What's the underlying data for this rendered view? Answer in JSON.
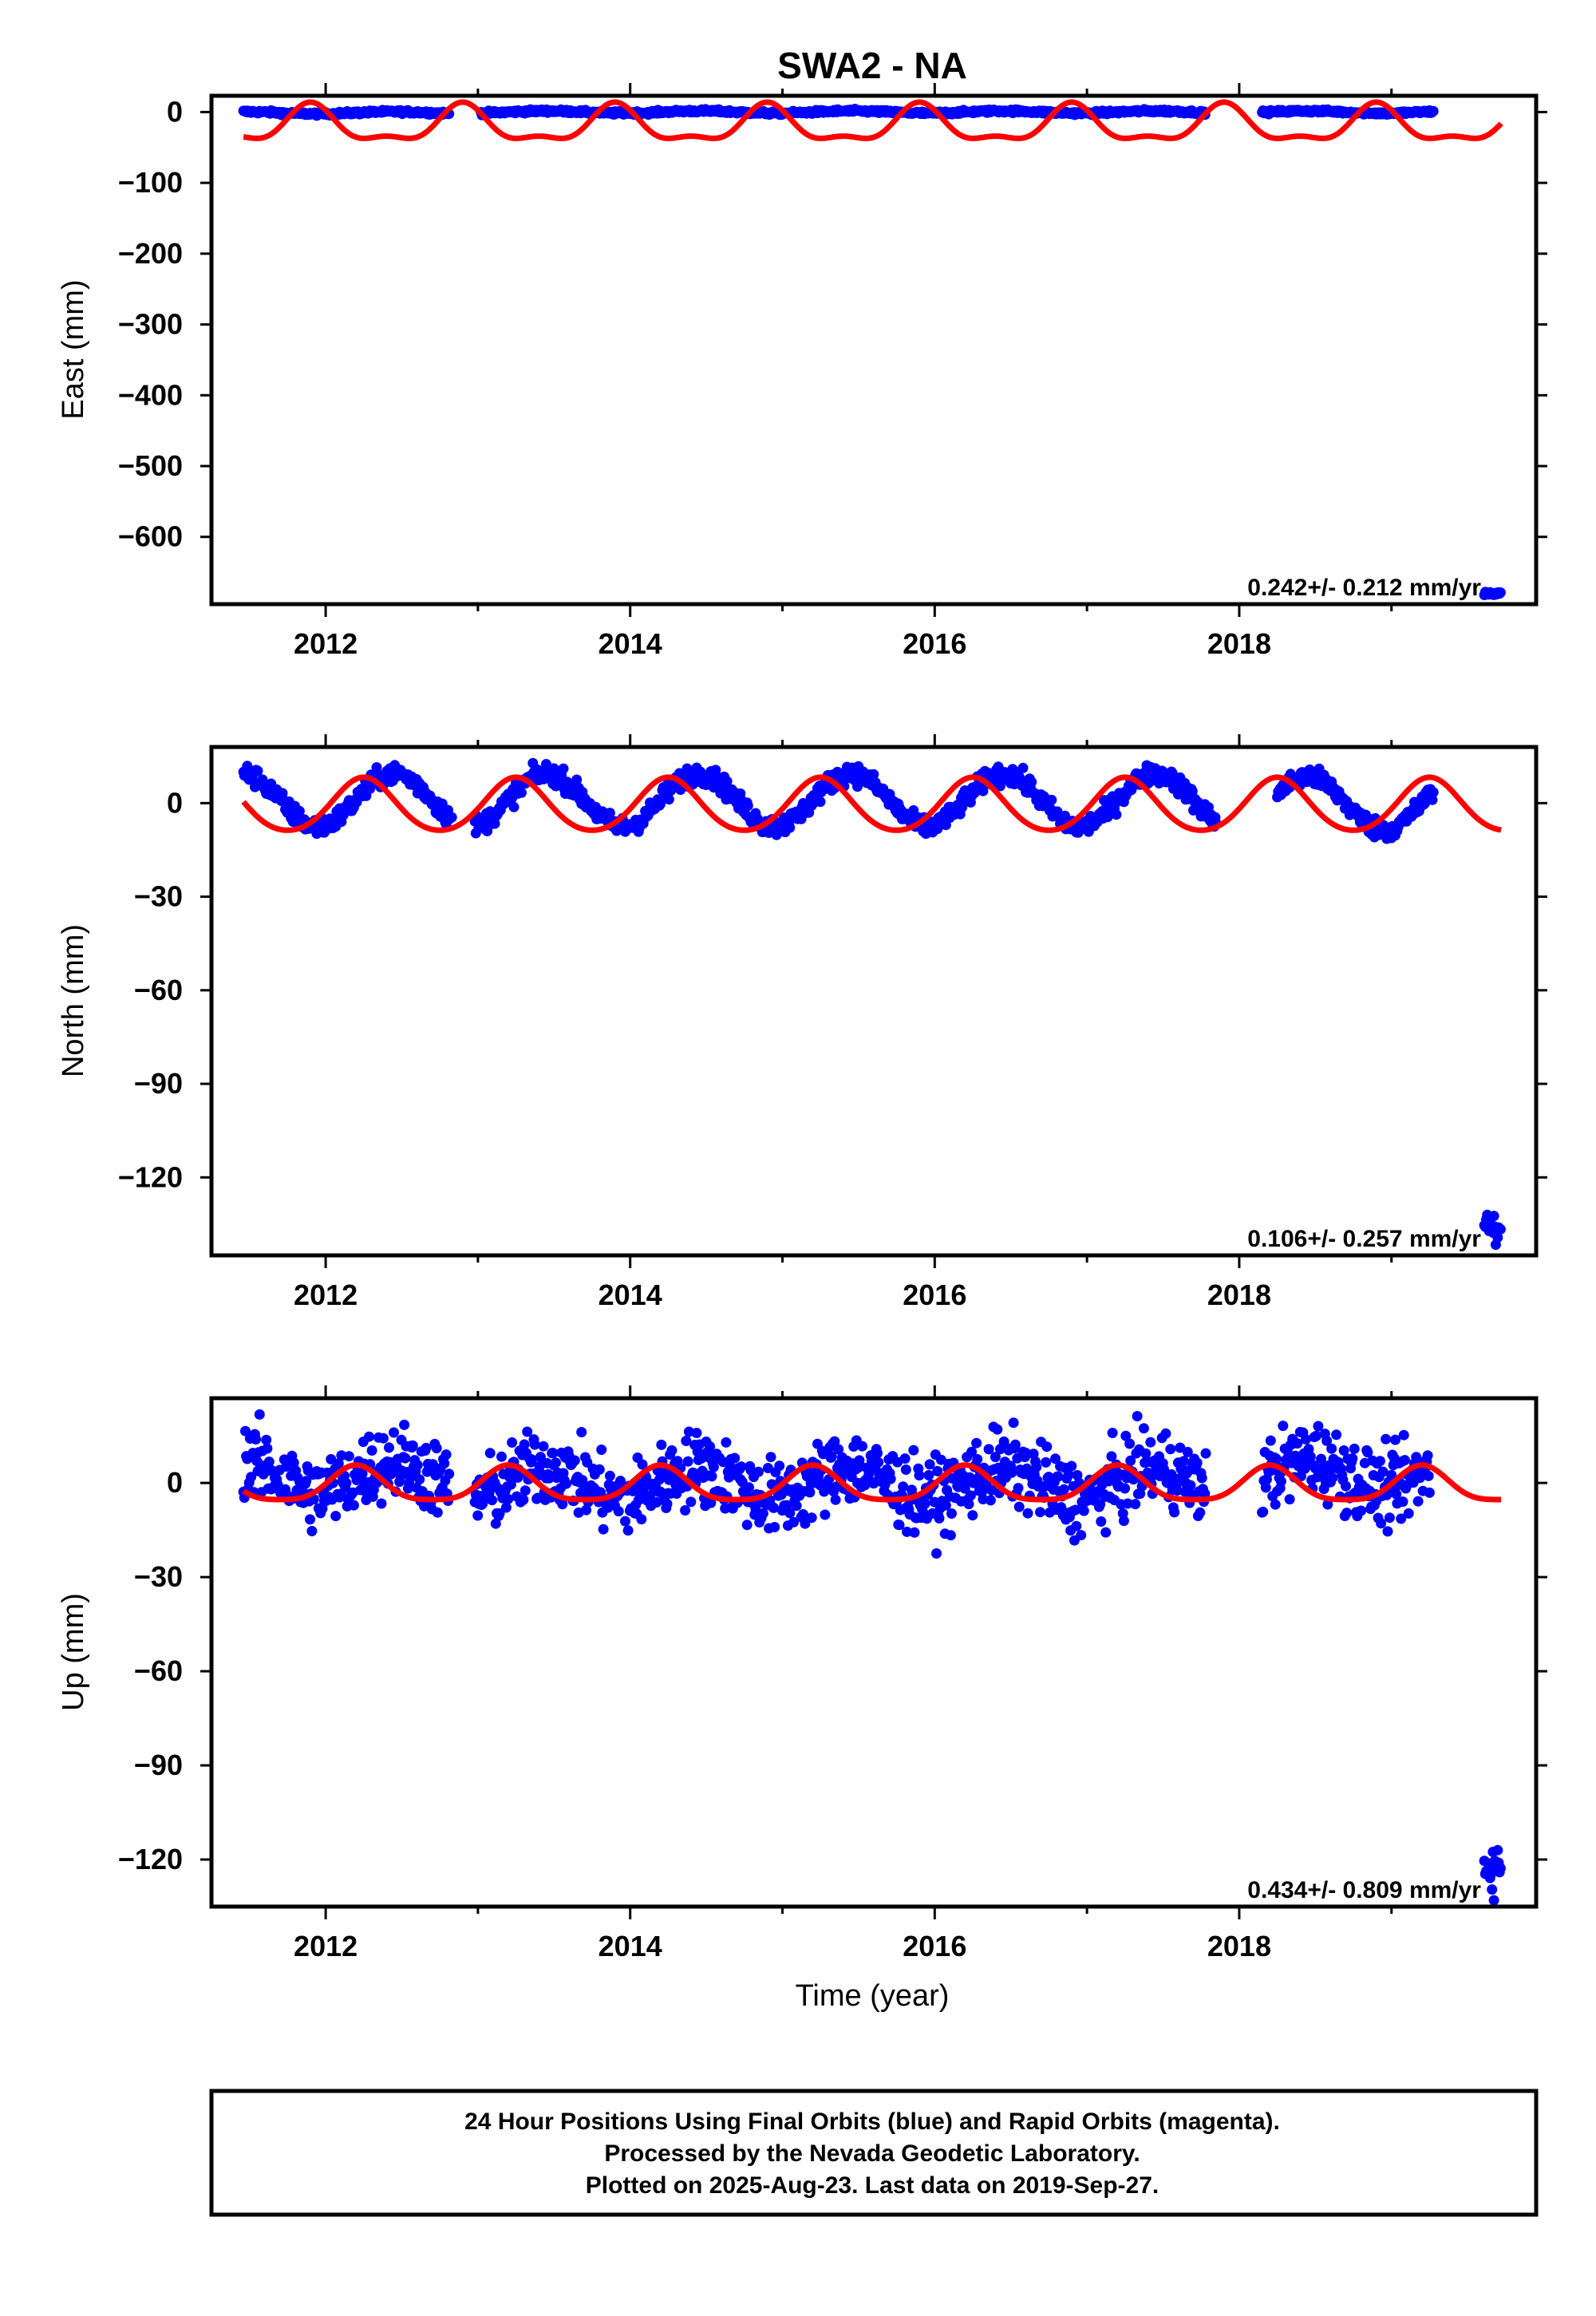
{
  "chart_data": {
    "title": "SWA2 - NA",
    "x_tick_labels": [
      "2012",
      "2014",
      "2016",
      "2018"
    ],
    "xlabel": "Time (year)",
    "grid": false,
    "colors": {
      "observed": "#0000ff",
      "model": "#ff0000",
      "frame": "#000000"
    },
    "panels": [
      {
        "type": "scatter",
        "name": "east",
        "ylabel": "East (mm)",
        "xlim": [
          2011.25,
          2019.95
        ],
        "ylim": [
          -695,
          23
        ],
        "y_ticks": [
          {
            "value": 0,
            "label": "0"
          },
          {
            "value": -100,
            "label": "−100"
          },
          {
            "value": -200,
            "label": "−200"
          },
          {
            "value": -300,
            "label": "−300"
          },
          {
            "value": -400,
            "label": "−400"
          },
          {
            "value": -500,
            "label": "−500"
          },
          {
            "value": -600,
            "label": "−600"
          }
        ],
        "rate": "0.242+/- 0.212 mm/yr",
        "observed_segments": [
          {
            "start": 2011.46,
            "end": 2012.81,
            "offset": -1,
            "amp": 1.5,
            "noise": 1.2
          },
          {
            "start": 2013.02,
            "end": 2017.78,
            "offset": 0,
            "amp": 1.5,
            "noise": 1.2
          },
          {
            "start": 2018.15,
            "end": 2019.28,
            "offset": 0,
            "amp": 1.5,
            "noise": 1.2
          },
          {
            "start": 2019.61,
            "end": 2019.72,
            "offset": -680,
            "amp": 0,
            "noise": 1.5
          }
        ],
        "model": {
          "start": 2011.46,
          "end": 2019.72,
          "offset": -20,
          "annual_amp": 24,
          "semiannual_amp": 10,
          "phase": 1.9
        }
      },
      {
        "type": "scatter",
        "name": "north",
        "ylabel": "North (mm)",
        "xlim": [
          2011.25,
          2019.95
        ],
        "ylim": [
          -145,
          18
        ],
        "y_ticks": [
          {
            "value": 0,
            "label": "0"
          },
          {
            "value": -30,
            "label": "−30"
          },
          {
            "value": -60,
            "label": "−60"
          },
          {
            "value": -90,
            "label": "−90"
          },
          {
            "value": -120,
            "label": "−120"
          }
        ],
        "rate": "0.106+/- 0.257 mm/yr",
        "observed_segments": [
          {
            "start": 2011.46,
            "end": 2012.83,
            "offset": 1,
            "amp": 8.5,
            "noise": 1.6
          },
          {
            "start": 2012.98,
            "end": 2017.85,
            "offset": 1,
            "amp": 8.5,
            "noise": 1.6
          },
          {
            "start": 2018.25,
            "end": 2019.28,
            "offset": 0,
            "amp": 8.5,
            "noise": 1.6
          },
          {
            "start": 2019.61,
            "end": 2019.72,
            "offset": -137,
            "amp": 4,
            "noise": 2
          }
        ],
        "model": {
          "start": 2011.46,
          "end": 2019.72,
          "offset": -1,
          "annual_amp": 8.5,
          "semiannual_amp": 0.8,
          "phase": 0.25
        }
      },
      {
        "type": "scatter",
        "name": "up",
        "ylabel": "Up (mm)",
        "xlim": [
          2011.25,
          2019.95
        ],
        "ylim": [
          -135,
          27
        ],
        "y_ticks": [
          {
            "value": 0,
            "label": "0"
          },
          {
            "value": -30,
            "label": "−30"
          },
          {
            "value": -60,
            "label": "−60"
          },
          {
            "value": -90,
            "label": "−90"
          },
          {
            "value": -120,
            "label": "−120"
          }
        ],
        "rate": "0.434+/- 0.809 mm/yr",
        "observed_segments": [
          {
            "start": 2011.46,
            "end": 2012.81,
            "offset": 2,
            "amp": 5,
            "noise": 6
          },
          {
            "start": 2012.98,
            "end": 2017.78,
            "offset": 0,
            "amp": 5,
            "noise": 6
          },
          {
            "start": 2018.15,
            "end": 2019.25,
            "offset": 3,
            "amp": 5,
            "noise": 6
          },
          {
            "start": 2019.61,
            "end": 2019.72,
            "offset": -123,
            "amp": 3,
            "noise": 4
          }
        ],
        "model": {
          "start": 2011.46,
          "end": 2019.72,
          "offset": -1,
          "annual_amp": 5.5,
          "semiannual_amp": 1.2,
          "phase": 0.2
        }
      }
    ]
  },
  "footer": {
    "line1": "24 Hour Positions Using Final Orbits (blue) and Rapid Orbits (magenta).",
    "line2": "Processed by the Nevada Geodetic Laboratory.",
    "line3": "Plotted on 2025-Aug-23. Last data on 2019-Sep-27."
  }
}
